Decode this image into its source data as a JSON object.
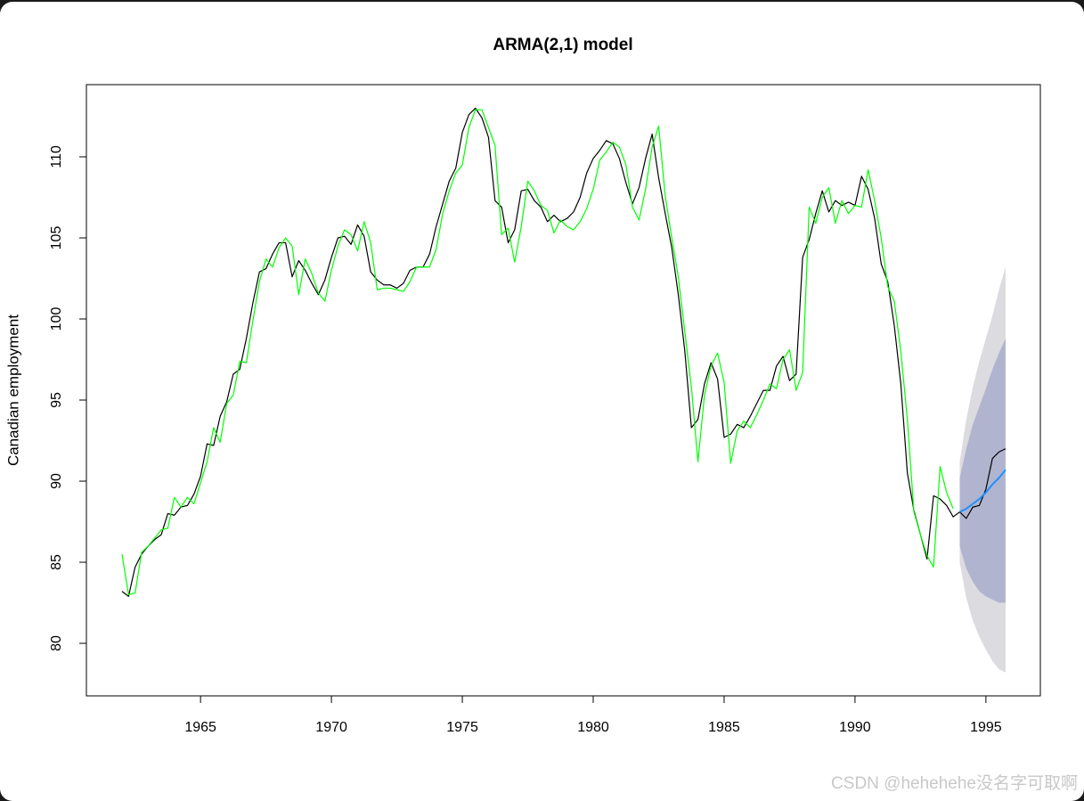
{
  "chart_data": {
    "type": "line",
    "title": "ARMA(2,1) model",
    "y_label": "Canadian employment",
    "watermark": "CSDN @hehehehe没名字可取啊",
    "xlim": [
      1960.64,
      1997.08
    ],
    "ylim": [
      76.76,
      114.45
    ],
    "xticks": [
      1965,
      1970,
      1975,
      1980,
      1985,
      1990,
      1995
    ],
    "yticks": [
      80,
      85,
      90,
      95,
      100,
      105,
      110
    ],
    "x": [
      1962,
      1962.25,
      1962.5,
      1962.75,
      1963,
      1963.25,
      1963.5,
      1963.75,
      1964,
      1964.25,
      1964.5,
      1964.75,
      1965,
      1965.25,
      1965.5,
      1965.75,
      1966,
      1966.25,
      1966.5,
      1966.75,
      1967,
      1967.25,
      1967.5,
      1967.75,
      1968,
      1968.25,
      1968.5,
      1968.75,
      1969,
      1969.25,
      1969.5,
      1969.75,
      1970,
      1970.25,
      1970.5,
      1970.75,
      1971,
      1971.25,
      1971.5,
      1971.75,
      1972,
      1972.25,
      1972.5,
      1972.75,
      1973,
      1973.25,
      1973.5,
      1973.75,
      1974,
      1974.25,
      1974.5,
      1974.75,
      1975,
      1975.25,
      1975.5,
      1975.75,
      1976,
      1976.25,
      1976.5,
      1976.75,
      1977,
      1977.25,
      1977.5,
      1977.75,
      1978,
      1978.25,
      1978.5,
      1978.75,
      1979,
      1979.25,
      1979.5,
      1979.75,
      1980,
      1980.25,
      1980.5,
      1980.75,
      1981,
      1981.25,
      1981.5,
      1981.75,
      1982,
      1982.25,
      1982.5,
      1982.75,
      1983,
      1983.25,
      1983.5,
      1983.75,
      1984,
      1984.25,
      1984.5,
      1984.75,
      1985,
      1985.25,
      1985.5,
      1985.75,
      1986,
      1986.25,
      1986.5,
      1986.75,
      1987,
      1987.25,
      1987.5,
      1987.75,
      1988,
      1988.25,
      1988.5,
      1988.75,
      1989,
      1989.25,
      1989.5,
      1989.75,
      1990,
      1990.25,
      1990.5,
      1990.75,
      1991,
      1991.25,
      1991.5,
      1991.75,
      1992,
      1992.25,
      1992.5,
      1992.75,
      1993,
      1993.25,
      1993.5,
      1993.75,
      1994,
      1994.25,
      1994.5,
      1994.75,
      1995,
      1995.25,
      1995.5,
      1995.75
    ],
    "series": [
      {
        "color": "#000000",
        "values": [
          83.2,
          82.9,
          84.7,
          85.5,
          86.0,
          86.4,
          86.7,
          88.0,
          87.9,
          88.4,
          88.5,
          89.2,
          90.3,
          92.3,
          92.2,
          94.0,
          94.9,
          96.6,
          96.9,
          98.8,
          101.0,
          102.9,
          103.1,
          104.0,
          104.7,
          104.7,
          102.6,
          103.6,
          103.0,
          102.2,
          101.5,
          102.4,
          103.8,
          105.0,
          105.1,
          104.6,
          105.8,
          105.1,
          102.9,
          102.4,
          102.1,
          102.1,
          101.9,
          102.2,
          103.0,
          103.2,
          103.2,
          104.0,
          105.7,
          107.1,
          108.5,
          109.3,
          111.5,
          112.6,
          113.0,
          112.4,
          111.2,
          107.3,
          106.9,
          104.7,
          105.5,
          107.9,
          108.0,
          107.3,
          106.9,
          106.0,
          106.4,
          106.0,
          106.2,
          106.6,
          107.5,
          109.0,
          109.9,
          110.4,
          111.0,
          110.8,
          109.9,
          108.4,
          107.1,
          108.1,
          109.9,
          111.4,
          108.7,
          106.5,
          104.4,
          101.5,
          98.0,
          93.3,
          93.8,
          96.0,
          97.3,
          96.3,
          92.7,
          92.9,
          93.5,
          93.3,
          94.0,
          94.8,
          95.6,
          95.6,
          97.1,
          97.7,
          96.2,
          96.6,
          103.8,
          104.9,
          106.5,
          107.9,
          106.6,
          107.3,
          107.0,
          107.2,
          107.0,
          108.8,
          108.0,
          106.2,
          103.4,
          102.3,
          99.6,
          96.0,
          90.5,
          88.2,
          86.7,
          85.2,
          89.1,
          88.9,
          88.5,
          87.8,
          88.1,
          87.7,
          88.4,
          88.5,
          89.5,
          91.4,
          91.8,
          92.0
        ]
      },
      {
        "color": "#00ff00",
        "values": [
          85.5,
          83.0,
          83.1,
          85.6,
          86.0,
          86.5,
          87.0,
          87.1,
          89.0,
          88.4,
          89.0,
          88.6,
          89.9,
          91.2,
          93.3,
          92.4,
          94.8,
          95.3,
          97.4,
          97.3,
          99.9,
          102.3,
          103.7,
          103.2,
          104.4,
          105.0,
          104.5,
          101.5,
          103.7,
          102.8,
          101.6,
          101.1,
          103.0,
          104.5,
          105.5,
          105.2,
          104.2,
          106.0,
          104.7,
          101.8,
          101.9,
          101.9,
          101.8,
          101.7,
          102.3,
          103.2,
          103.2,
          103.2,
          104.3,
          106.5,
          107.9,
          109.0,
          109.5,
          111.8,
          112.9,
          112.9,
          111.8,
          110.7,
          105.2,
          105.6,
          103.5,
          105.7,
          108.5,
          107.9,
          107.0,
          106.7,
          105.3,
          106.1,
          105.7,
          105.5,
          106.0,
          106.8,
          108.0,
          109.8,
          110.3,
          110.9,
          110.6,
          109.5,
          106.9,
          106.1,
          108.0,
          110.6,
          111.9,
          107.6,
          105.0,
          102.6,
          99.2,
          95.8,
          91.2,
          95.3,
          97.1,
          97.9,
          96.1,
          91.1,
          93.1,
          93.7,
          93.3,
          94.1,
          95.0,
          96.0,
          95.7,
          97.5,
          98.1,
          95.6,
          96.7,
          106.9,
          105.9,
          107.5,
          108.1,
          105.9,
          107.3,
          106.5,
          107.0,
          106.9,
          109.2,
          107.3,
          105.0,
          102.0,
          101.1,
          98.0,
          93.8,
          88.1,
          86.7,
          85.4,
          84.7,
          90.9,
          89.3,
          88.3,
          null,
          null,
          null,
          null,
          null,
          null,
          null,
          null
        ]
      }
    ],
    "forecast": {
      "color": "#1e90ff",
      "x": [
        1994,
        1994.25,
        1994.5,
        1994.75,
        1995,
        1995.25,
        1995.5,
        1995.75
      ],
      "values": [
        88.1,
        88.3,
        88.6,
        88.9,
        89.3,
        89.8,
        90.2,
        90.7
      ],
      "intervals": [
        {
          "color": "#dbdbe0",
          "lower": [
            85.0,
            82.8,
            81.4,
            80.4,
            79.6,
            78.9,
            78.4,
            78.2
          ],
          "upper": [
            91.2,
            93.8,
            95.8,
            97.4,
            98.8,
            100.2,
            101.8,
            103.2
          ]
        },
        {
          "color": "#b0b4cf",
          "lower": [
            86.0,
            84.6,
            83.8,
            83.2,
            82.9,
            82.7,
            82.5,
            82.5
          ],
          "upper": [
            90.2,
            92.0,
            93.5,
            94.6,
            95.7,
            96.9,
            97.9,
            98.8
          ]
        }
      ]
    }
  }
}
